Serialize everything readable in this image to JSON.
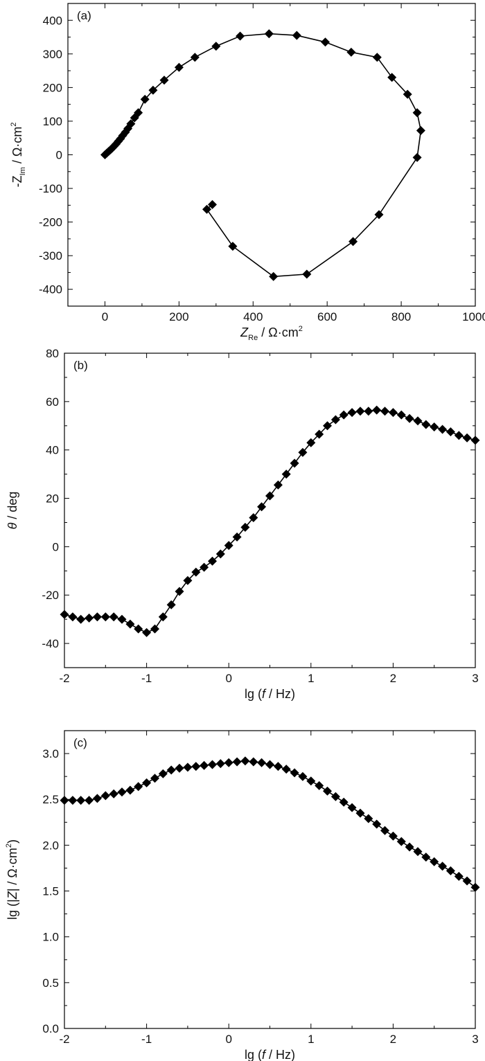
{
  "chart_data": [
    {
      "type": "line",
      "panel_label": "(a)",
      "xlabel": {
        "main": "Z",
        "sub": "Re",
        "unit": " / Ω·cm",
        "sup": "2"
      },
      "ylabel": {
        "main": "-Z",
        "sub": "Im",
        "unit": " / Ω·cm",
        "sup": "2"
      },
      "xlim": [
        -100,
        1000
      ],
      "ylim": [
        -450,
        450
      ],
      "xticks": [
        0,
        200,
        400,
        600,
        800,
        1000
      ],
      "yticks": [
        -400,
        -300,
        -200,
        -100,
        0,
        100,
        200,
        300,
        400
      ],
      "xtick_labels": [
        "0",
        "200",
        "400",
        "600",
        "800",
        "1000"
      ],
      "ytick_labels": [
        "-400",
        "-300",
        "-200",
        "-100",
        "0",
        "100",
        "200",
        "300",
        "400"
      ],
      "marker": "diamond",
      "color": "#000000",
      "series": [
        {
          "x": [
            0,
            5,
            10,
            15,
            20,
            25,
            30,
            36,
            42,
            48,
            55,
            62,
            70,
            80,
            90,
            108,
            130,
            160,
            200,
            243,
            300,
            365,
            443,
            518,
            595,
            665,
            735,
            775,
            817,
            843,
            853,
            843,
            740,
            670,
            545,
            455,
            345,
            275,
            290
          ],
          "y": [
            0,
            5,
            10,
            15,
            20,
            26,
            32,
            40,
            48,
            57,
            67,
            78,
            92,
            110,
            125,
            165,
            192,
            222,
            260,
            290,
            323,
            353,
            360,
            355,
            335,
            305,
            290,
            230,
            180,
            125,
            72,
            -8,
            -178,
            -258,
            -355,
            -362,
            -272,
            -162,
            -148
          ]
        }
      ]
    },
    {
      "type": "line",
      "panel_label": "(b)",
      "xlabel": {
        "pre": "lg (",
        "italic": "f",
        "post": " / Hz)"
      },
      "ylabel": {
        "italic": "θ",
        "post": " / deg"
      },
      "xlim": [
        -2,
        3
      ],
      "ylim": [
        -50,
        80
      ],
      "xticks": [
        -2,
        -1,
        0,
        1,
        2,
        3
      ],
      "yticks": [
        -40,
        -20,
        0,
        20,
        40,
        60,
        80
      ],
      "xtick_labels": [
        "-2",
        "-1",
        "0",
        "1",
        "2",
        "3"
      ],
      "ytick_labels": [
        "-40",
        "-20",
        "0",
        "20",
        "40",
        "60",
        "80"
      ],
      "marker": "diamond",
      "color": "#000000",
      "series": [
        {
          "x": [
            -2.0,
            -1.9,
            -1.8,
            -1.7,
            -1.6,
            -1.5,
            -1.4,
            -1.3,
            -1.2,
            -1.1,
            -1.0,
            -0.9,
            -0.8,
            -0.7,
            -0.6,
            -0.5,
            -0.4,
            -0.3,
            -0.2,
            -0.1,
            0.0,
            0.1,
            0.2,
            0.3,
            0.4,
            0.5,
            0.6,
            0.7,
            0.8,
            0.9,
            1.0,
            1.1,
            1.2,
            1.3,
            1.4,
            1.5,
            1.6,
            1.7,
            1.8,
            1.9,
            2.0,
            2.1,
            2.2,
            2.3,
            2.4,
            2.5,
            2.6,
            2.7,
            2.8,
            2.9,
            3.0
          ],
          "y": [
            -28,
            -29,
            -30,
            -29.5,
            -29,
            -29,
            -29,
            -30,
            -32,
            -34,
            -35.5,
            -34,
            -29,
            -24,
            -18.5,
            -14,
            -10.5,
            -8.5,
            -6,
            -3,
            0.5,
            4,
            8,
            12,
            16.5,
            21,
            25.5,
            30,
            34.5,
            39,
            43,
            46.5,
            50,
            52.5,
            54.5,
            55.5,
            56,
            56,
            56.5,
            56,
            55.5,
            54.5,
            53,
            52,
            50.5,
            49.5,
            48.5,
            47.5,
            46,
            45,
            44
          ]
        }
      ]
    },
    {
      "type": "line",
      "panel_label": "(c)",
      "xlabel": {
        "pre": "lg (",
        "italic": "f",
        "post": " / Hz)"
      },
      "ylabel": {
        "pre": "lg (|",
        "italic": "Z",
        "mid": "| / Ω·cm",
        "sup": "2",
        "post": ")"
      },
      "xlim": [
        -2,
        3
      ],
      "ylim": [
        0,
        3.25
      ],
      "xticks": [
        -2,
        -1,
        0,
        1,
        2,
        3
      ],
      "yticks": [
        0,
        0.5,
        1.0,
        1.5,
        2.0,
        2.5,
        3.0
      ],
      "xtick_labels": [
        "-2",
        "-1",
        "0",
        "1",
        "2",
        "3"
      ],
      "ytick_labels": [
        "0.0",
        "0.5",
        "1.0",
        "1.5",
        "2.0",
        "2.5",
        "3.0"
      ],
      "marker": "diamond",
      "color": "#000000",
      "series": [
        {
          "x": [
            -2.0,
            -1.9,
            -1.8,
            -1.7,
            -1.6,
            -1.5,
            -1.4,
            -1.3,
            -1.2,
            -1.1,
            -1.0,
            -0.9,
            -0.8,
            -0.7,
            -0.6,
            -0.5,
            -0.4,
            -0.3,
            -0.2,
            -0.1,
            0.0,
            0.1,
            0.2,
            0.3,
            0.4,
            0.5,
            0.6,
            0.7,
            0.8,
            0.9,
            1.0,
            1.1,
            1.2,
            1.3,
            1.4,
            1.5,
            1.6,
            1.7,
            1.8,
            1.9,
            2.0,
            2.1,
            2.2,
            2.3,
            2.4,
            2.5,
            2.6,
            2.7,
            2.8,
            2.9,
            3.0
          ],
          "y": [
            2.49,
            2.49,
            2.49,
            2.49,
            2.51,
            2.54,
            2.56,
            2.58,
            2.6,
            2.64,
            2.68,
            2.73,
            2.78,
            2.82,
            2.84,
            2.85,
            2.86,
            2.87,
            2.88,
            2.89,
            2.9,
            2.91,
            2.92,
            2.91,
            2.9,
            2.88,
            2.86,
            2.83,
            2.79,
            2.75,
            2.7,
            2.65,
            2.59,
            2.53,
            2.47,
            2.41,
            2.35,
            2.29,
            2.23,
            2.16,
            2.1,
            2.04,
            1.98,
            1.93,
            1.87,
            1.82,
            1.77,
            1.72,
            1.66,
            1.61,
            1.54
          ]
        }
      ]
    }
  ]
}
